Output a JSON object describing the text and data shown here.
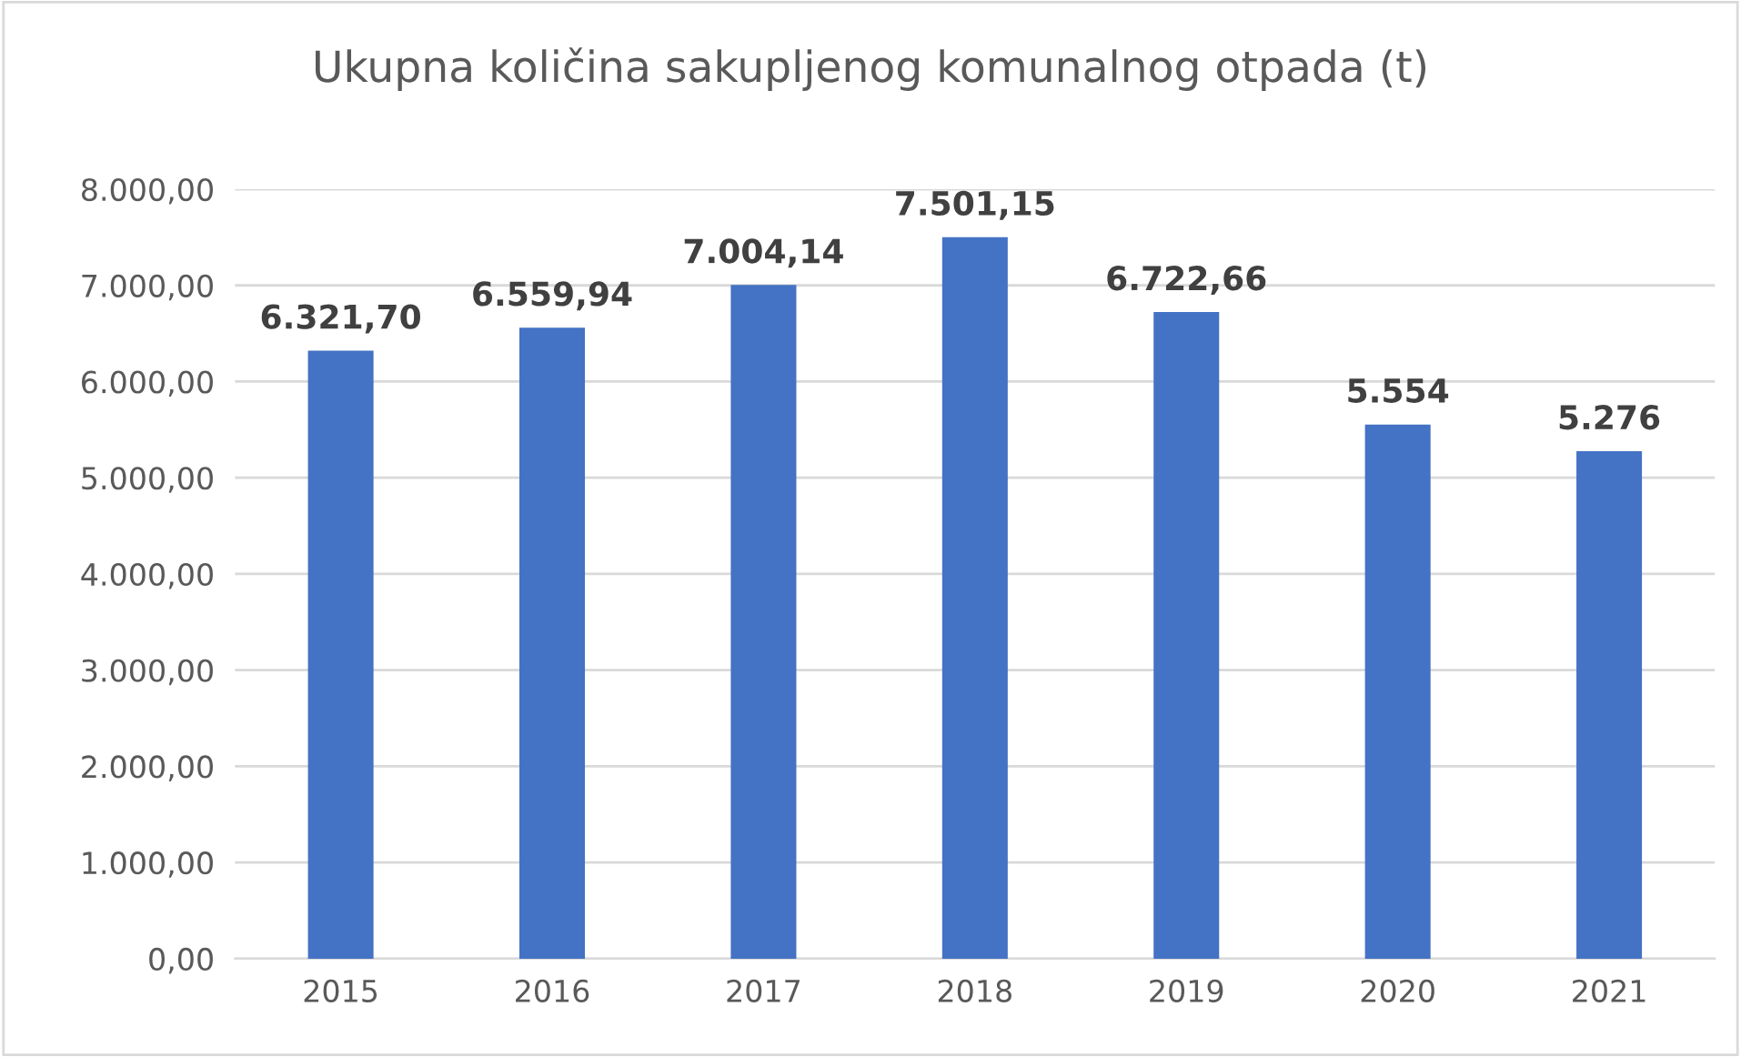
{
  "chart_data": {
    "type": "bar",
    "title": "Ukupna količina sakupljenog komunalnog otpada (t)",
    "categories": [
      "2015",
      "2016",
      "2017",
      "2018",
      "2019",
      "2020",
      "2021"
    ],
    "values": [
      6321.7,
      6559.94,
      7004.14,
      7501.15,
      6722.66,
      5554,
      5276
    ],
    "value_labels": [
      "6.321,70",
      "6.559,94",
      "7.004,14",
      "7.501,15",
      "6.722,66",
      "5.554",
      "5.276"
    ],
    "color": "#4472c4",
    "ylim": [
      0,
      8000
    ],
    "yticks": [
      {
        "value": 0,
        "label": "0,00"
      },
      {
        "value": 1000,
        "label": "1.000,00"
      },
      {
        "value": 2000,
        "label": "2.000,00"
      },
      {
        "value": 3000,
        "label": "3.000,00"
      },
      {
        "value": 4000,
        "label": "4.000,00"
      },
      {
        "value": 5000,
        "label": "5.000,00"
      },
      {
        "value": 6000,
        "label": "6.000,00"
      },
      {
        "value": 7000,
        "label": "7.000,00"
      },
      {
        "value": 8000,
        "label": "8.000,00"
      }
    ],
    "grid": "y"
  }
}
